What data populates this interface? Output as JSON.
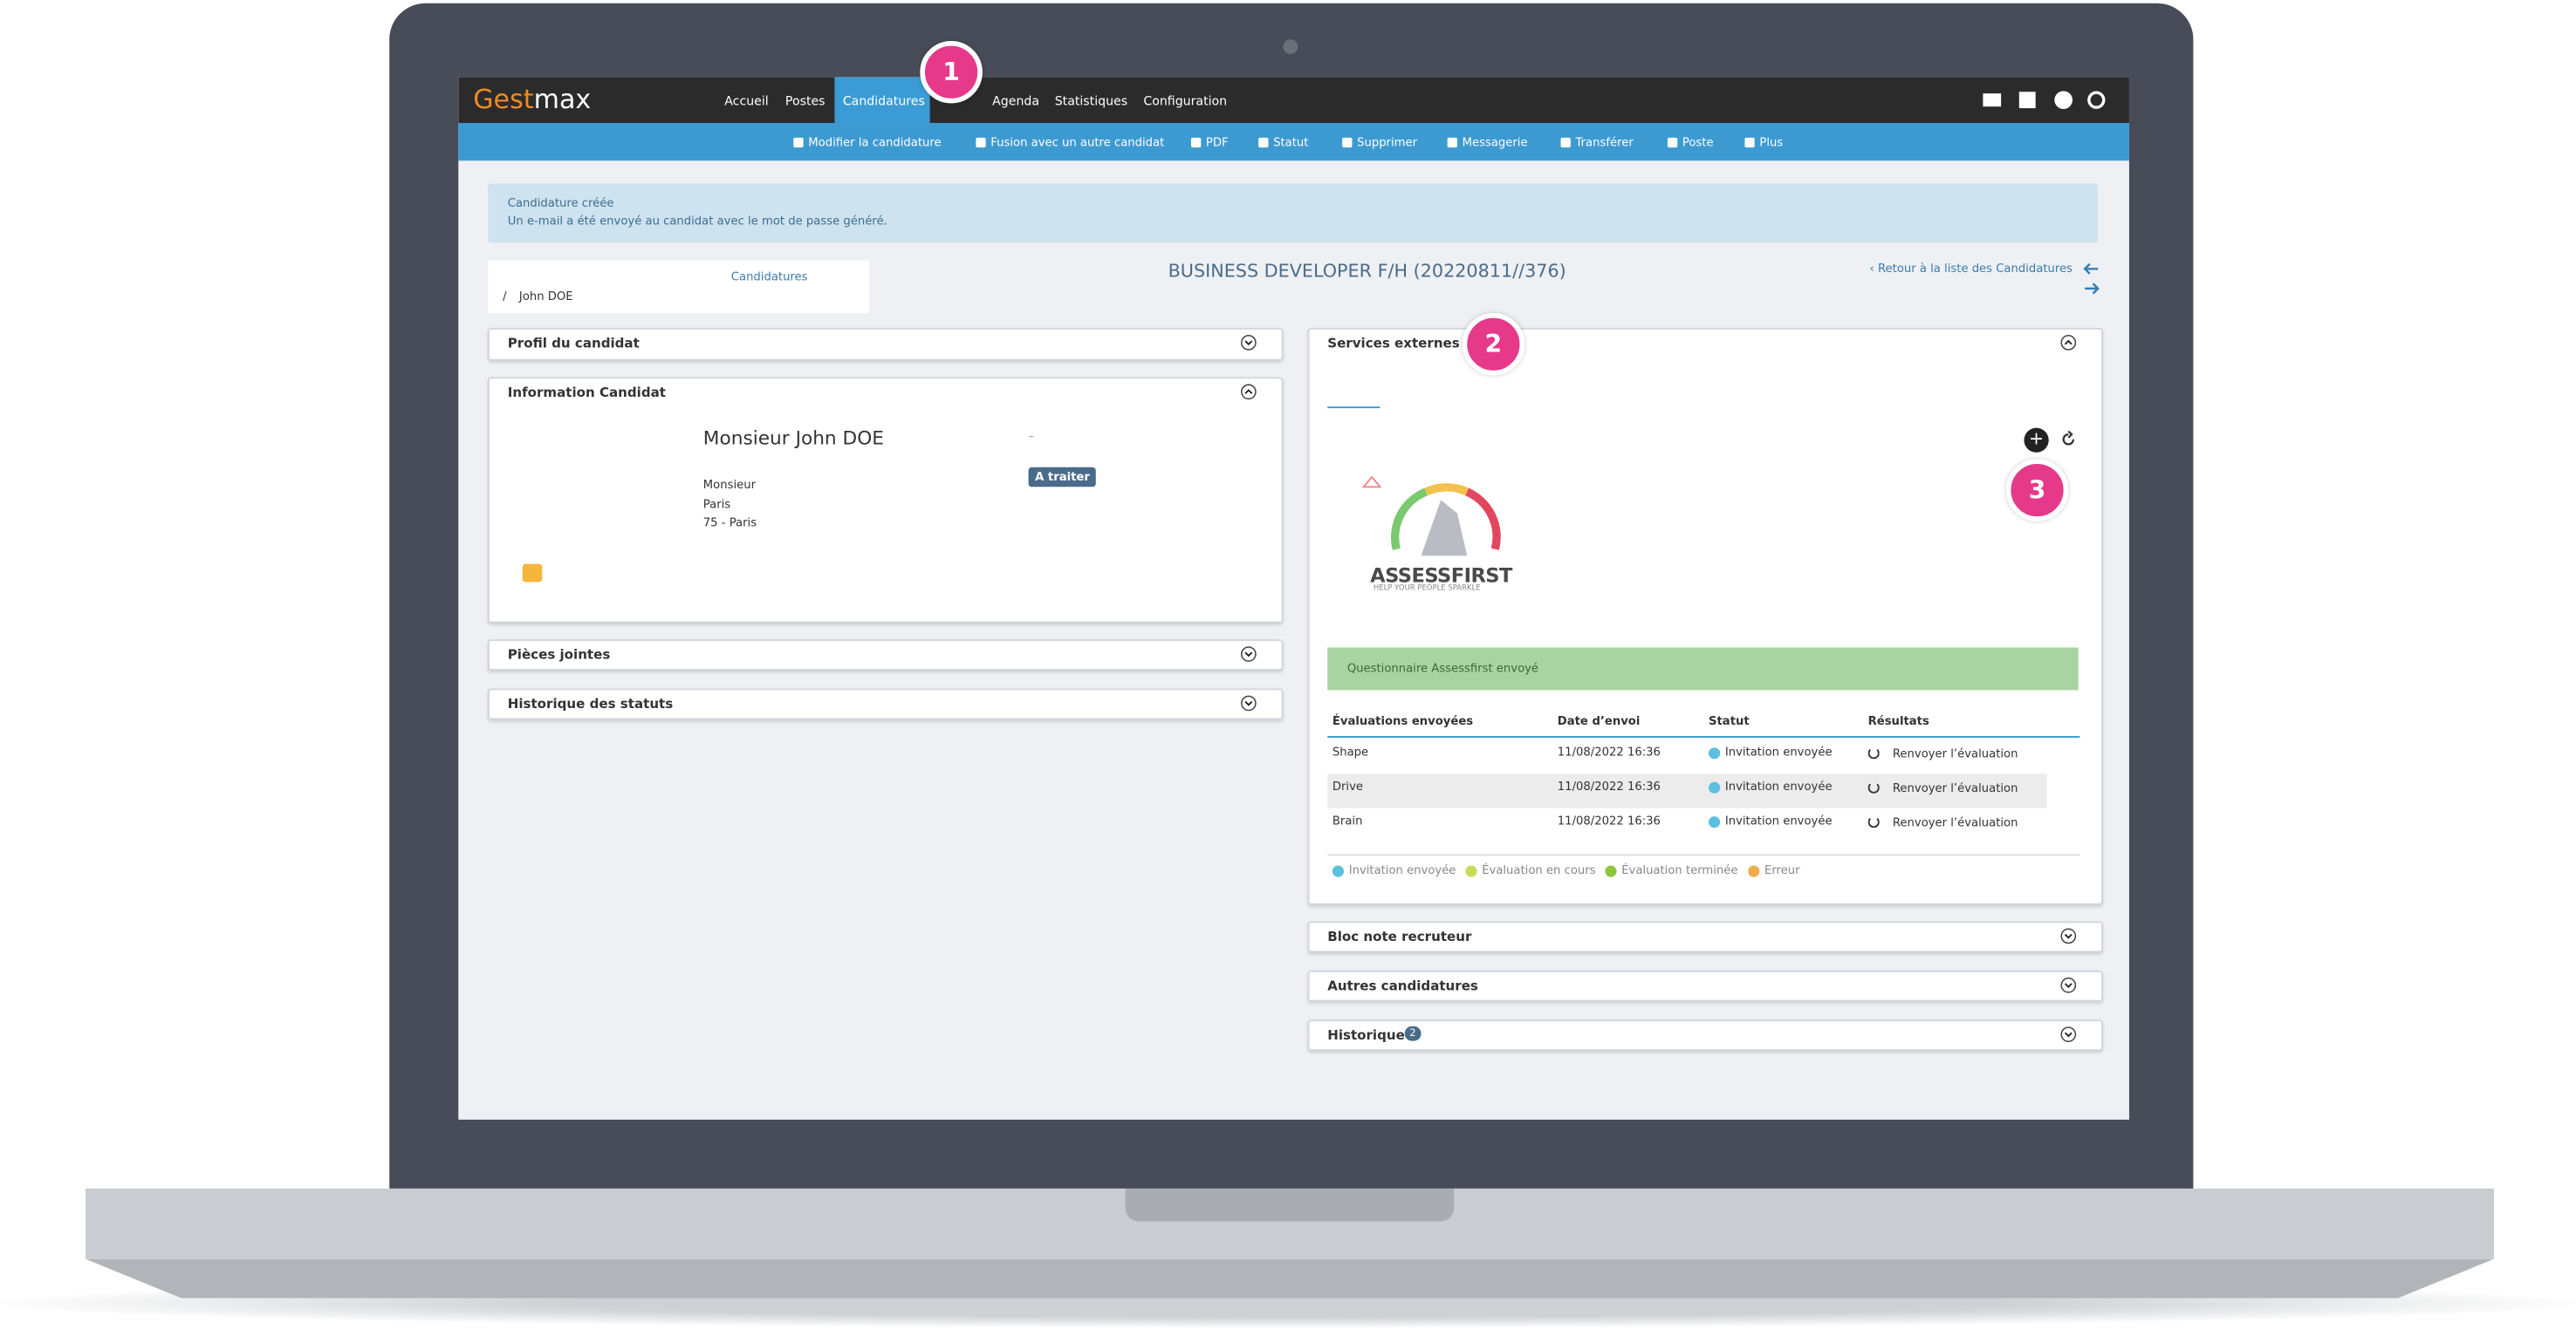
{
  "header": {
    "brand_a": "Gest",
    "brand_b": "max",
    "nav": [
      "Accueil",
      "Postes",
      "Candidatures",
      "Agenda",
      "Statistiques",
      "Configuration"
    ]
  },
  "markers": [
    "1",
    "2",
    "3"
  ],
  "toolbar": [
    "Modifier la candidature",
    "Fusion avec un autre candidat",
    "PDF",
    "Statut",
    "Supprimer",
    "Messagerie",
    "Transférer",
    "Poste",
    "Plus"
  ],
  "alert": {
    "title": "Candidature créée",
    "text": "Un e-mail a été envoyé au candidat avec le mot de passe généré."
  },
  "breadcrumb": {
    "parent": "Candidatures",
    "separator": "/",
    "current": "John DOE"
  },
  "page_title": "BUSINESS DEVELOPER F/H (20220811//376)",
  "back_link": "Retour à la liste des Candidatures",
  "left_panels": [
    "Profil du candidat",
    "Information Candidat",
    "Pièces jointes",
    "Historique des statuts"
  ],
  "candidate": {
    "name": "Monsieur John DOE",
    "dash": "–",
    "status": "A traiter",
    "lines": [
      "Monsieur",
      "Paris",
      "75 - Paris"
    ]
  },
  "services": {
    "title": "Services externes",
    "logo": "ASSESSFIRST",
    "tagline": "HELP YOUR PEOPLE SPARKLE",
    "notice": "Questionnaire Assessfirst envoyé",
    "table": {
      "headers": [
        "Évaluations envoyées",
        "Date d’envoi",
        "Statut",
        "Résultats"
      ],
      "rows": [
        [
          "Shape",
          "11/08/2022 16:36",
          "Invitation envoyée",
          "Renvoyer l’évaluation"
        ],
        [
          "Drive",
          "11/08/2022 16:36",
          "Invitation envoyée",
          "Renvoyer l’évaluation"
        ],
        [
          "Brain",
          "11/08/2022 16:36",
          "Invitation envoyée",
          "Renvoyer l’évaluation"
        ]
      ]
    },
    "legend": [
      {
        "label": "Invitation envoyée",
        "color": "#5bc0de"
      },
      {
        "label": "Évaluation en cours",
        "color": "#c9dc5a"
      },
      {
        "label": "Évaluation terminée",
        "color": "#8cc63f"
      },
      {
        "label": "Erreur",
        "color": "#f0ad4e"
      }
    ]
  },
  "right_panels": [
    "Bloc note recruteur",
    "Autres candidatures",
    "Historique"
  ],
  "history_badge": "2"
}
